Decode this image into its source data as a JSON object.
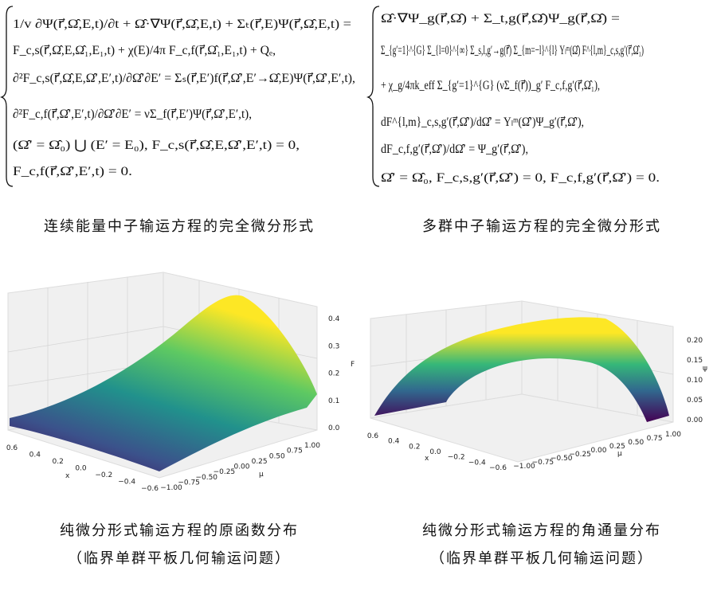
{
  "equations": {
    "left": [
      "1/v ∂Ψ(r⃗,Ω̂,E,t)/∂t + Ω̂·∇Ψ(r⃗,Ω̂,E,t) + Σₜ(r⃗,E)Ψ(r⃗,Ω̂,E,t) =",
      "F_c,s(r⃗,Ω̂,E,Ω̂₁,E₁,t) + χ(E)/4π F_c,f(r⃗,Ω̂₁,E₁,t) + Qₑ,",
      "∂²F_c,s(r⃗,Ω̂,E,Ω̂′,E′,t)/∂Ω̂′∂E′ = Σₛ(r⃗,E′)f(r⃗,Ω̂′,E′→Ω̂,E)Ψ(r⃗,Ω̂′,E′,t),",
      "∂²F_c,f(r⃗,Ω̂′,E′,t)/∂Ω̂′∂E′ = νΣ_f(r⃗,E′)Ψ(r⃗,Ω̂′,E′,t),",
      "(Ω̂′ = Ω̂₀) ⋃ (E′ = E₀), F_c,s(r⃗,Ω̂,E,Ω̂′,E′,t) = 0,",
      "F_c,f(r⃗,Ω̂′,E′,t) = 0."
    ],
    "right": [
      "Ω̂·∇Ψ_g(r⃗,Ω̂) + Σ_t,g(r⃗,Ω̂)Ψ_g(r⃗,Ω̂) =",
      "Σ_{g′=1}^{G} Σ_{l=0}^{∞} Σ_s,l,g′→g(r⃗) Σ_{m=−l}^{l} Yₗᵐ(Ω̂) F^{l,m}_c,s,g′(r⃗,Ω̂₁)",
      "+ χ_g/4πk_eff Σ_{g′=1}^{G} (νΣ_f(r⃗))_g′ F_c,f,g′(r⃗,Ω̂₁),",
      "dF^{l,m}_c,s,g′(r⃗,Ω̂′)/dΩ̂′ = Yₗᵐ(Ω̂′)Ψ_g′(r⃗,Ω̂′),",
      "dF_c,f,g′(r⃗,Ω̂′)/dΩ̂′ = Ψ_g′(r⃗,Ω̂′),",
      "Ω̂′ = Ω̂₀, F_c,s,g′(r⃗,Ω̂′) = 0, F_c,f,g′(r⃗,Ω̂′) = 0."
    ]
  },
  "captions": {
    "left_equation": "连续能量中子输运方程的完全微分形式",
    "right_equation": "多群中子输运方程的完全微分形式",
    "left_plot": [
      "纯微分形式输运方程的原函数分布",
      "（临界单群平板几何输运问题）"
    ],
    "right_plot": [
      "纯微分形式输运方程的角通量分布",
      "（临界单群平板几何输运问题）"
    ]
  },
  "plots": [
    {
      "x_label": "x",
      "y_label": "μ",
      "z_label": "F",
      "x_ticks": [
        "0.6",
        "0.4",
        "0.2",
        "0.0",
        "−0.2",
        "−0.4",
        "−0.6"
      ],
      "y_ticks": [
        "−1.00",
        "−0.75",
        "−0.50",
        "−0.25",
        "0.00",
        "0.25",
        "0.50",
        "0.75",
        "1.00"
      ],
      "z_ticks": [
        "0.0",
        "0.1",
        "0.2",
        "0.3",
        "0.4"
      ]
    },
    {
      "x_label": "x",
      "y_label": "μ",
      "z_label": "ψ",
      "x_ticks": [
        "0.6",
        "0.4",
        "0.2",
        "0.0",
        "−0.2",
        "−0.4",
        "−0.6"
      ],
      "y_ticks": [
        "−1.00",
        "−0.75",
        "−0.50",
        "−0.25",
        "0.00",
        "0.25",
        "0.50",
        "0.75",
        "1.00"
      ],
      "z_ticks": [
        "0.00",
        "0.05",
        "0.10",
        "0.15",
        "0.20"
      ]
    }
  ]
}
